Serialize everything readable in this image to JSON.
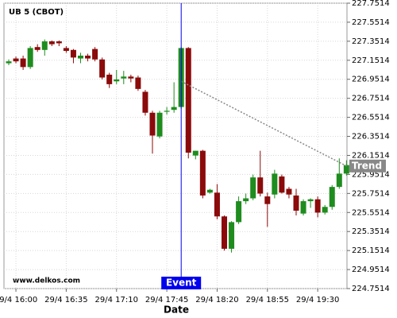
{
  "chart_data": {
    "type": "candlestick",
    "title": "UB 5 (CBOT)",
    "x_label": "Date",
    "watermark": "www.delkos.com",
    "categories": [
      null,
      "29/4 16:00",
      null,
      null,
      null,
      null,
      null,
      null,
      "29/4 16:35",
      null,
      null,
      null,
      null,
      null,
      null,
      "29/4 17:10",
      null,
      null,
      null,
      null,
      null,
      null,
      "29/4 17:45",
      null,
      null,
      null,
      null,
      null,
      null,
      "29/4 18:20",
      null,
      null,
      null,
      null,
      null,
      null,
      "29/4 18:55",
      null,
      null,
      null,
      null,
      null,
      null,
      "29/4 19:30",
      null,
      null,
      null,
      null
    ],
    "open": [
      227.12,
      227.17,
      227.17,
      227.08,
      227.29,
      227.26,
      227.35,
      227.35,
      227.28,
      227.26,
      227.17,
      227.2,
      227.27,
      227.16,
      227.0,
      226.93,
      226.96,
      226.98,
      226.97,
      226.82,
      226.6,
      226.35,
      226.61,
      226.63,
      226.66,
      227.28,
      226.15,
      226.2,
      225.76,
      225.76,
      225.51,
      225.17,
      225.45,
      225.67,
      225.7,
      225.92,
      225.72,
      225.74,
      225.93,
      225.8,
      225.73,
      225.54,
      225.67,
      225.69,
      225.55,
      225.61,
      225.82,
      225.96
    ],
    "high": [
      227.16,
      227.19,
      227.2,
      227.3,
      227.32,
      227.37,
      227.36,
      227.36,
      227.3,
      227.27,
      227.23,
      227.22,
      227.29,
      227.18,
      227.02,
      227.05,
      227.04,
      227.0,
      226.99,
      226.84,
      226.62,
      226.62,
      226.66,
      226.92,
      227.29,
      227.29,
      226.2,
      226.21,
      225.8,
      225.85,
      225.52,
      225.46,
      225.72,
      225.75,
      225.95,
      226.2,
      225.76,
      226.0,
      225.95,
      225.82,
      225.8,
      225.69,
      225.7,
      225.72,
      225.63,
      225.84,
      226.12,
      226.1
    ],
    "low": [
      227.1,
      227.12,
      227.05,
      227.06,
      227.24,
      227.2,
      227.3,
      227.3,
      227.23,
      227.12,
      227.12,
      227.14,
      227.14,
      226.95,
      226.86,
      226.9,
      226.9,
      226.92,
      226.83,
      226.57,
      226.17,
      226.33,
      226.58,
      226.6,
      226.64,
      226.12,
      226.11,
      225.7,
      225.75,
      225.48,
      225.15,
      225.13,
      225.43,
      225.64,
      225.68,
      225.72,
      225.4,
      225.7,
      225.75,
      225.7,
      225.52,
      225.52,
      225.6,
      225.5,
      225.53,
      225.58,
      225.8,
      225.94
    ],
    "close": [
      227.14,
      227.14,
      227.08,
      227.28,
      227.26,
      227.35,
      227.32,
      227.33,
      227.25,
      227.18,
      227.2,
      227.17,
      227.16,
      226.97,
      226.9,
      226.95,
      226.98,
      226.96,
      226.85,
      226.6,
      226.36,
      226.6,
      226.62,
      226.66,
      227.28,
      226.18,
      226.2,
      225.73,
      225.79,
      225.51,
      225.17,
      225.45,
      225.67,
      225.7,
      225.92,
      225.75,
      225.64,
      225.96,
      225.76,
      225.74,
      225.57,
      225.67,
      225.69,
      225.55,
      225.61,
      225.82,
      225.96,
      226.05
    ],
    "up_color": "#1e8c1e",
    "down_color": "#8b0a0a",
    "ylim": [
      224.7514,
      227.7514
    ],
    "yticks": [
      224.7514,
      224.9514,
      225.1514,
      225.3514,
      225.5514,
      225.7514,
      225.9514,
      226.1514,
      226.3514,
      226.5514,
      226.7514,
      226.9514,
      227.1514,
      227.3514,
      227.5514,
      227.7514
    ],
    "grid": true,
    "event": {
      "label": "Event",
      "at": 24,
      "color": "#0000ee"
    },
    "trend": {
      "label": "Trend",
      "start": [
        24,
        226.93
      ],
      "end": [
        47,
        226.04
      ],
      "color": "#888888"
    }
  }
}
